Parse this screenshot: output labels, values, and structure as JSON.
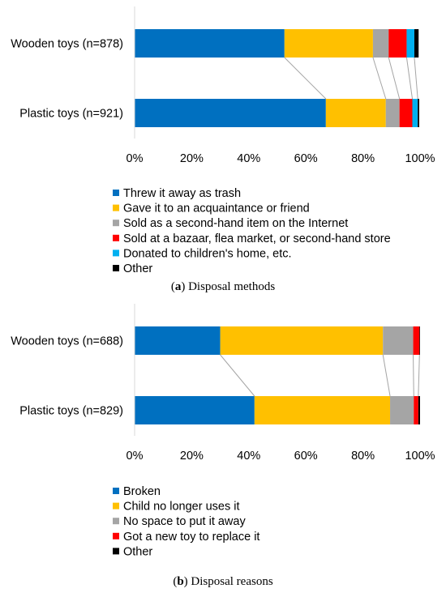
{
  "chart_data": [
    {
      "type": "bar",
      "orientation": "horizontal",
      "stacked": true,
      "panel_letter": "a",
      "caption": "Disposal methods",
      "categories": [
        "Wooden toys (n=878)",
        "Plastic toys (n=921)"
      ],
      "xlim": [
        0,
        100
      ],
      "x_ticks": [
        "0%",
        "20%",
        "40%",
        "60%",
        "80%",
        "100%"
      ],
      "legend_position": "bottom",
      "series": [
        {
          "name": "Threw it away as trash",
          "color": "#0070C0",
          "values": [
            52.5,
            67.0
          ]
        },
        {
          "name": "Gave it to an acquaintance or friend",
          "color": "#FFC000",
          "values": [
            31.0,
            21.0
          ]
        },
        {
          "name": "Sold as a second-hand item on the Internet",
          "color": "#A5A5A5",
          "values": [
            5.5,
            4.8
          ]
        },
        {
          "name": "Sold at a bazaar, flea market, or second-hand store",
          "color": "#FF0000",
          "values": [
            6.3,
            4.5
          ]
        },
        {
          "name": "Donated to children's home, etc.",
          "color": "#00B0F0",
          "values": [
            2.7,
            1.9
          ]
        },
        {
          "name": "Other",
          "color": "#000000",
          "values": [
            1.5,
            0.5
          ]
        }
      ]
    },
    {
      "type": "bar",
      "orientation": "horizontal",
      "stacked": true,
      "panel_letter": "b",
      "caption": "Disposal reasons",
      "categories": [
        "Wooden toys (n=688)",
        "Plastic toys (n=829)"
      ],
      "xlim": [
        0,
        100
      ],
      "x_ticks": [
        "0%",
        "20%",
        "40%",
        "60%",
        "80%",
        "100%"
      ],
      "legend_position": "bottom",
      "series": [
        {
          "name": "Broken",
          "color": "#0070C0",
          "values": [
            30.0,
            42.0
          ]
        },
        {
          "name": "Child no longer uses it",
          "color": "#FFC000",
          "values": [
            57.0,
            47.5
          ]
        },
        {
          "name": "No space to put it away",
          "color": "#A5A5A5",
          "values": [
            10.6,
            8.3
          ]
        },
        {
          "name": "Got a new toy to replace it",
          "color": "#FF0000",
          "values": [
            2.2,
            1.6
          ]
        },
        {
          "name": "Other",
          "color": "#000000",
          "values": [
            0.2,
            0.6
          ]
        }
      ]
    }
  ]
}
